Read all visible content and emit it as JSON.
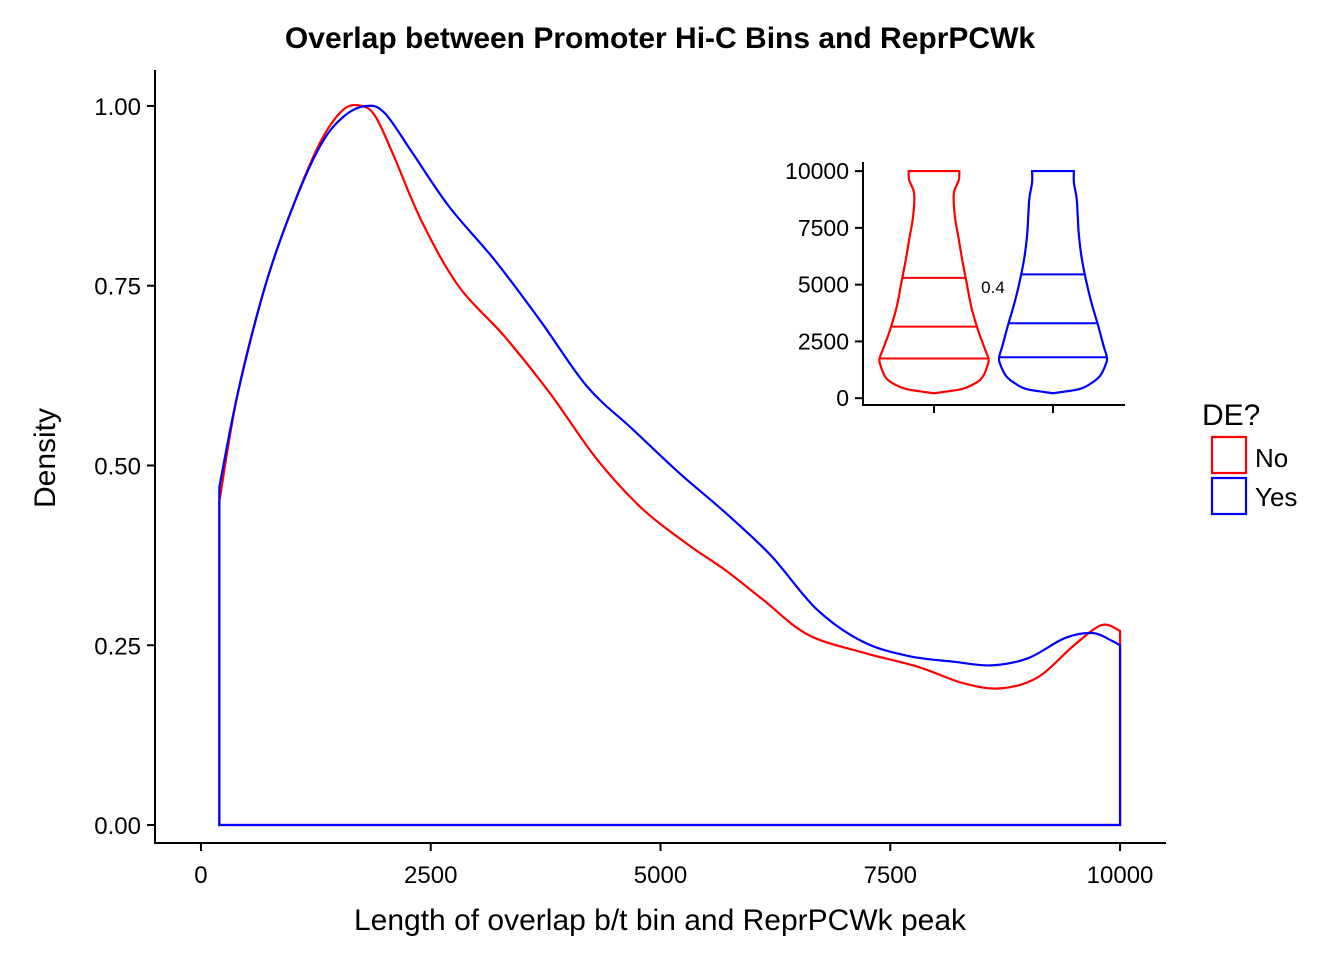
{
  "chart_data": [
    {
      "type": "line",
      "subtype": "density",
      "title": "Overlap between Promoter Hi-C Bins and ReprPCWk",
      "xlabel": "Length of overlap b/t bin and ReprPCWk peak",
      "ylabel": "Density",
      "xlim": [
        -500,
        10500
      ],
      "ylim": [
        -0.025,
        1.05
      ],
      "xticks": [
        0,
        2500,
        5000,
        7500,
        10000
      ],
      "xtick_labels": [
        "0",
        "2500",
        "5000",
        "7500",
        "10000"
      ],
      "yticks": [
        0,
        0.25,
        0.5,
        0.75,
        1.0
      ],
      "ytick_labels": [
        "0.00",
        "0.25",
        "0.50",
        "0.75",
        "1.00"
      ],
      "grid": false,
      "legend_position": "right",
      "legend_title": "DE?",
      "series": [
        {
          "name": "No",
          "color": "#ff0000",
          "points": [
            [
              200,
              0
            ],
            [
              200,
              0.45
            ],
            [
              400,
              0.6
            ],
            [
              700,
              0.75
            ],
            [
              1000,
              0.86
            ],
            [
              1300,
              0.95
            ],
            [
              1550,
              0.995
            ],
            [
              1750,
              1.0
            ],
            [
              1900,
              0.985
            ],
            [
              2100,
              0.93
            ],
            [
              2400,
              0.84
            ],
            [
              2800,
              0.75
            ],
            [
              3300,
              0.68
            ],
            [
              3800,
              0.6
            ],
            [
              4300,
              0.51
            ],
            [
              4800,
              0.44
            ],
            [
              5300,
              0.39
            ],
            [
              5700,
              0.355
            ],
            [
              6100,
              0.315
            ],
            [
              6600,
              0.265
            ],
            [
              7200,
              0.24
            ],
            [
              7800,
              0.22
            ],
            [
              8300,
              0.197
            ],
            [
              8700,
              0.19
            ],
            [
              9100,
              0.205
            ],
            [
              9500,
              0.25
            ],
            [
              9800,
              0.278
            ],
            [
              10000,
              0.27
            ],
            [
              10000,
              0
            ]
          ]
        },
        {
          "name": "Yes",
          "color": "#0000ff",
          "points": [
            [
              200,
              0
            ],
            [
              200,
              0.47
            ],
            [
              400,
              0.6
            ],
            [
              700,
              0.75
            ],
            [
              1000,
              0.86
            ],
            [
              1300,
              0.945
            ],
            [
              1550,
              0.985
            ],
            [
              1800,
              1.0
            ],
            [
              2000,
              0.99
            ],
            [
              2300,
              0.935
            ],
            [
              2700,
              0.86
            ],
            [
              3200,
              0.785
            ],
            [
              3700,
              0.7
            ],
            [
              4200,
              0.61
            ],
            [
              4700,
              0.55
            ],
            [
              5200,
              0.49
            ],
            [
              5700,
              0.435
            ],
            [
              6200,
              0.375
            ],
            [
              6700,
              0.3
            ],
            [
              7200,
              0.255
            ],
            [
              7700,
              0.235
            ],
            [
              8200,
              0.227
            ],
            [
              8600,
              0.222
            ],
            [
              9000,
              0.232
            ],
            [
              9400,
              0.26
            ],
            [
              9700,
              0.267
            ],
            [
              9900,
              0.257
            ],
            [
              10000,
              0.25
            ],
            [
              10000,
              0
            ]
          ]
        }
      ]
    },
    {
      "type": "violin",
      "ylim": [
        -300,
        10400
      ],
      "yticks": [
        0,
        2500,
        5000,
        7500,
        10000
      ],
      "ytick_labels": [
        "0",
        "2500",
        "5000",
        "7500",
        "10000"
      ],
      "annotation": "0.4",
      "series": [
        {
          "name": "No",
          "color": "#ff0000",
          "quantiles": [
            1750,
            3150,
            5300
          ],
          "range": [
            220,
            10000
          ],
          "outline": [
            [
              220,
              0.0
            ],
            [
              400,
              0.5
            ],
            [
              700,
              0.78
            ],
            [
              1000,
              0.9
            ],
            [
              1500,
              0.98
            ],
            [
              1750,
              0.99
            ],
            [
              2200,
              0.92
            ],
            [
              3000,
              0.8
            ],
            [
              4000,
              0.68
            ],
            [
              5000,
              0.6
            ],
            [
              6000,
              0.52
            ],
            [
              7000,
              0.45
            ],
            [
              8000,
              0.38
            ],
            [
              9000,
              0.36
            ],
            [
              9600,
              0.45
            ],
            [
              10000,
              0.46
            ]
          ]
        },
        {
          "name": "Yes",
          "color": "#0000ff",
          "quantiles": [
            1800,
            3300,
            5450
          ],
          "range": [
            220,
            10000
          ],
          "outline": [
            [
              220,
              0.0
            ],
            [
              400,
              0.48
            ],
            [
              700,
              0.72
            ],
            [
              1000,
              0.86
            ],
            [
              1500,
              0.96
            ],
            [
              1800,
              0.98
            ],
            [
              2300,
              0.92
            ],
            [
              3200,
              0.82
            ],
            [
              4200,
              0.7
            ],
            [
              5200,
              0.6
            ],
            [
              6200,
              0.52
            ],
            [
              7200,
              0.47
            ],
            [
              8000,
              0.45
            ],
            [
              8800,
              0.43
            ],
            [
              9500,
              0.38
            ],
            [
              10000,
              0.38
            ]
          ]
        }
      ]
    }
  ]
}
